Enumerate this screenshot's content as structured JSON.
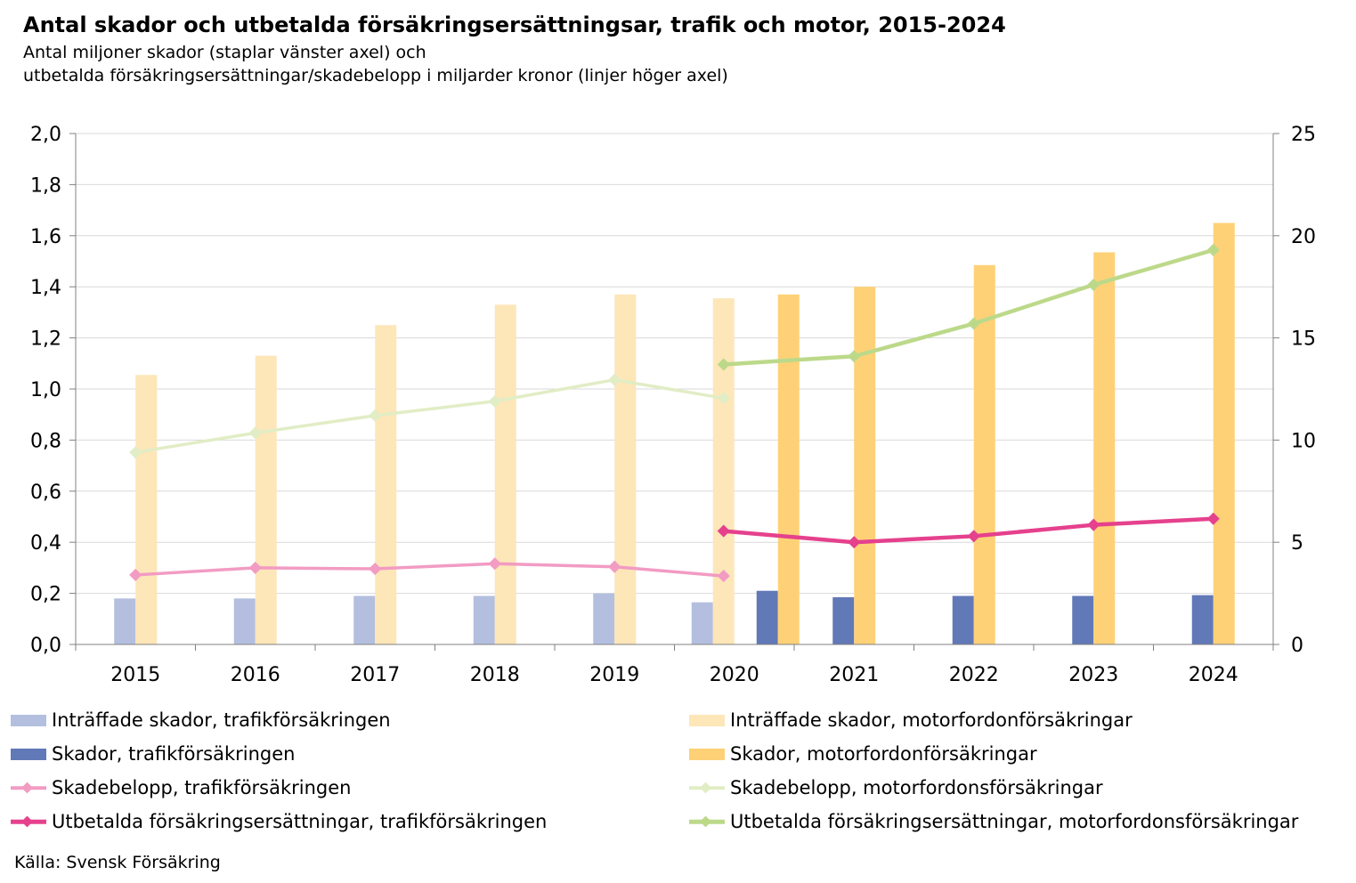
{
  "header": {
    "title": "Antal skador och utbetalda försäkringsersättningsar, trafik och motor, 2015-2024",
    "subtitle1": "Antal miljoner skador (staplar vänster axel) och",
    "subtitle2": "utbetalda försäkringsersättningar/skadebelopp i miljarder kronor (linjer höger axel)"
  },
  "source": "Källa: Svensk Försäkring",
  "chart_data": {
    "type": "bar+line",
    "categories": [
      "2015",
      "2016",
      "2017",
      "2018",
      "2019",
      "2020",
      "2021",
      "2022",
      "2023",
      "2024"
    ],
    "y_left": {
      "ylim": [
        0,
        2.0
      ],
      "ticks": [
        "0,0",
        "0,2",
        "0,4",
        "0,6",
        "0,8",
        "1,0",
        "1,2",
        "1,4",
        "1,6",
        "1,8",
        "2,0"
      ]
    },
    "y_right": {
      "ylim": [
        0,
        25
      ],
      "ticks": [
        "0",
        "5",
        "10",
        "15",
        "20",
        "25"
      ]
    },
    "grid": "horizontal",
    "legend_position": "bottom",
    "bar_series": [
      {
        "name": "Inträffade skador, trafikförsäkringen",
        "color": "#b4bfdf",
        "axis": "left",
        "values": [
          0.18,
          0.18,
          0.19,
          0.19,
          0.2,
          0.165,
          null,
          null,
          null,
          null
        ]
      },
      {
        "name": "Inträffade skador, motorfordonförsäkringar",
        "color": "#fde6b8",
        "axis": "left",
        "values": [
          1.055,
          1.13,
          1.25,
          1.33,
          1.37,
          1.355,
          null,
          null,
          null,
          null
        ]
      },
      {
        "name": "Skador, trafikförsäkringen",
        "color": "#6279b8",
        "axis": "left",
        "values": [
          null,
          null,
          null,
          null,
          null,
          0.21,
          0.185,
          0.19,
          0.19,
          0.193
        ]
      },
      {
        "name": "Skador, motorfordonförsäkringar",
        "color": "#fed177",
        "axis": "left",
        "values": [
          null,
          null,
          null,
          null,
          null,
          1.37,
          1.4,
          1.485,
          1.535,
          1.65
        ]
      }
    ],
    "line_series": [
      {
        "name": "Skadebelopp, trafikförsäkringen",
        "color": "#f29bc3",
        "axis": "right",
        "width": 3.5,
        "values": [
          3.4,
          3.75,
          3.7,
          3.95,
          3.8,
          3.35,
          null,
          null,
          null,
          null
        ]
      },
      {
        "name": "Skadebelopp, motorfordonsförsäkringar",
        "color": "#e1edc5",
        "axis": "right",
        "width": 3.5,
        "values": [
          9.4,
          10.35,
          11.2,
          11.9,
          12.95,
          12.05,
          null,
          null,
          null,
          null
        ]
      },
      {
        "name": "Utbetalda försäkringsersättningar, trafikförsäkringen",
        "color": "#e5418d",
        "axis": "right",
        "width": 4.5,
        "values": [
          null,
          null,
          null,
          null,
          null,
          5.55,
          5.0,
          5.3,
          5.85,
          6.15
        ]
      },
      {
        "name": "Utbetalda försäkringsersättningar, motorfordonsförsäkringar",
        "color": "#bcd98a",
        "axis": "right",
        "width": 4.5,
        "values": [
          null,
          null,
          null,
          null,
          null,
          13.7,
          14.1,
          15.7,
          17.6,
          19.3
        ]
      }
    ]
  }
}
